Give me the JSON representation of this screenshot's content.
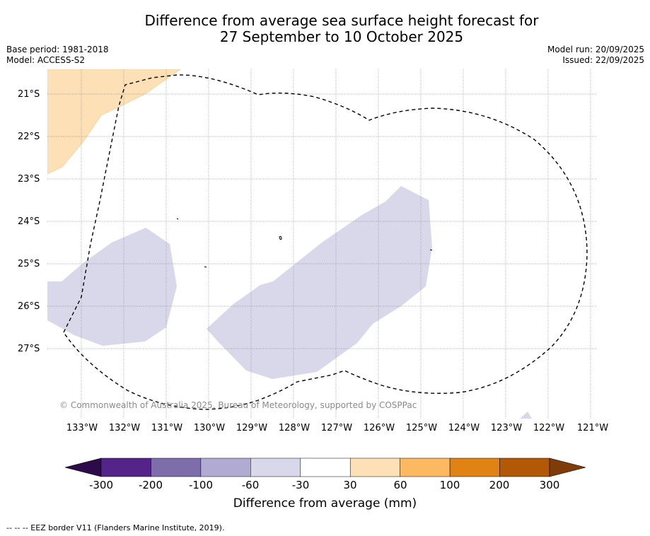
{
  "title": {
    "line1": "Difference from average sea surface height forecast for",
    "line2": "27 September to 10 October 2025"
  },
  "meta_left": {
    "base_period": "Base period: 1981-2018",
    "model": "Model: ACCESS-S2"
  },
  "meta_right": {
    "model_run": "Model run: 20/09/2025",
    "issued": "Issued: 22/09/2025"
  },
  "map": {
    "lat_labels": [
      "21°S",
      "22°S",
      "23°S",
      "24°S",
      "25°S",
      "26°S",
      "27°S"
    ],
    "lon_labels": [
      "133°W",
      "132°W",
      "131°W",
      "130°W",
      "129°W",
      "128°W",
      "127°W",
      "126°W",
      "125°W",
      "124°W",
      "123°W",
      "122°W",
      "121°W"
    ],
    "copyright": "© Commonwealth of Australia 2025, Bureau of Meteorology, supported by COSPPac",
    "colors": {
      "positive_30_60": "#fde0b6",
      "negative_60_30": "#d8d8ea",
      "eez_line": "#000000",
      "gridline": "#888888"
    }
  },
  "colorbar": {
    "tick_labels": [
      "-300",
      "-200",
      "-100",
      "-60",
      "-30",
      "30",
      "60",
      "100",
      "200",
      "300"
    ],
    "colors": [
      "#2d0a4a",
      "#54248a",
      "#7d6dab",
      "#b1aad2",
      "#d8d8ea",
      "#ffffff",
      "#fde0b6",
      "#fdb862",
      "#e08214",
      "#b35806",
      "#7f3b08"
    ],
    "label": "Difference from average (mm)"
  },
  "footer": {
    "legend_text": "--  --  -- EEZ border V11 (Flanders Marine Institute, 2019)."
  }
}
